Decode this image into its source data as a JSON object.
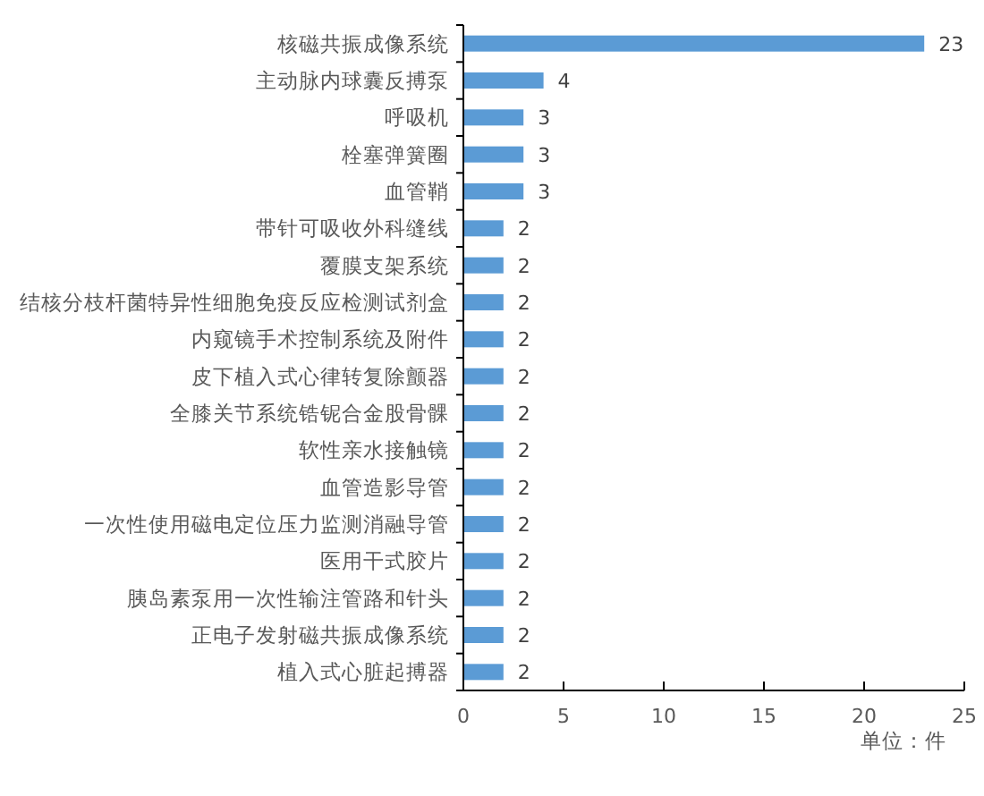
{
  "chart_data": {
    "type": "bar",
    "orientation": "horizontal",
    "categories": [
      "核磁共振成像系统",
      "主动脉内球囊反搏泵",
      "呼吸机",
      "栓塞弹簧圈",
      "血管鞘",
      "带针可吸收外科缝线",
      "覆膜支架系统",
      "结核分枝杆菌特异性细胞免疫反应检测试剂盒",
      "内窥镜手术控制系统及附件",
      "皮下植入式心律转复除颤器",
      "全膝关节系统锆铌合金股骨髁",
      "软性亲水接触镜",
      "血管造影导管",
      "一次性使用磁电定位压力监测消融导管",
      "医用干式胶片",
      "胰岛素泵用一次性输注管路和针头",
      "正电子发射磁共振成像系统",
      "植入式心脏起搏器"
    ],
    "values": [
      23,
      4,
      3,
      3,
      3,
      2,
      2,
      2,
      2,
      2,
      2,
      2,
      2,
      2,
      2,
      2,
      2,
      2
    ],
    "color": "#5b9bd5",
    "xlim": [
      0,
      25
    ],
    "xticks": [
      0,
      5,
      10,
      15,
      20,
      25
    ],
    "data_labels": true,
    "grid": false,
    "annotations": [
      "单位：件"
    ]
  }
}
